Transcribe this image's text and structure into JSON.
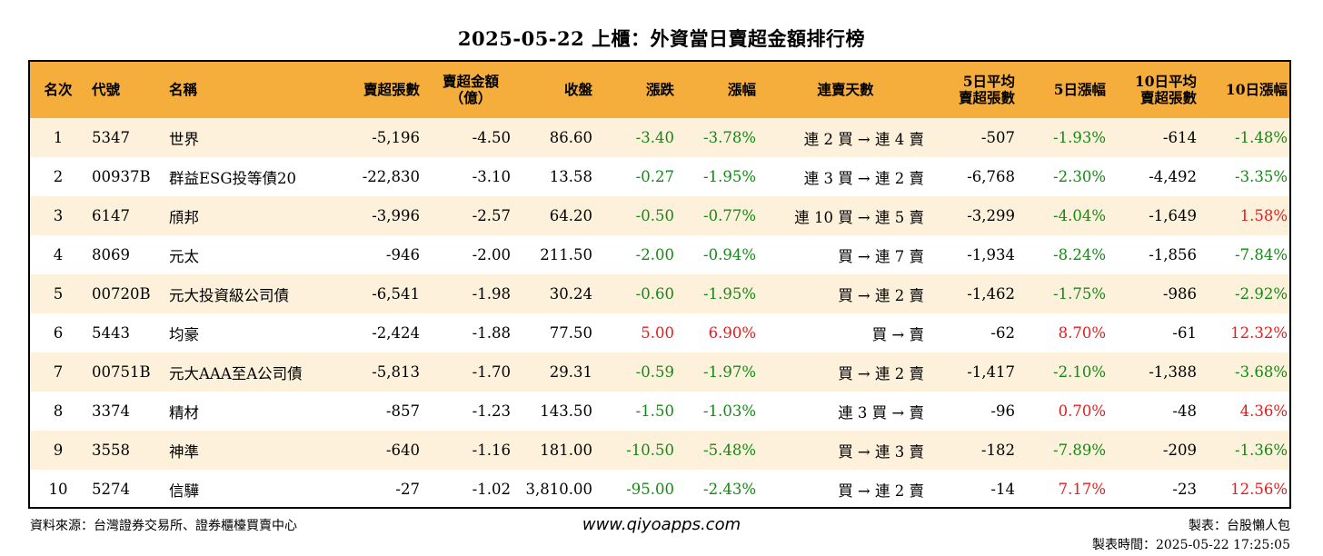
{
  "title": "2025-05-22 上櫃：外資當日賣超金額排行榜",
  "colors": {
    "header_bg": "#f5ae3c",
    "row_alt_bg": "#fdf1dc",
    "negative": "#138a13",
    "positive": "#e51c1c"
  },
  "headers": {
    "rank": "名次",
    "code": "代號",
    "name": "名稱",
    "sell_lots": "賣超張數",
    "sell_amount_1": "賣超金額",
    "sell_amount_2": "（億）",
    "close": "收盤",
    "change": "漲跌",
    "change_pct": "漲幅",
    "streak": "連賣天數",
    "avg5_1": "5日平均",
    "avg5_2": "賣超張數",
    "pct5": "5日漲幅",
    "avg10_1": "10日平均",
    "avg10_2": "賣超張數",
    "pct10": "10日漲幅"
  },
  "rows": [
    {
      "rank": "1",
      "code": "5347",
      "name": "世界",
      "sell_lots": "-5,196",
      "sell_amount": "-4.50",
      "close": "86.60",
      "change": "-3.40",
      "change_pct": "-3.78%",
      "streak": "連 2 買 → 連 4 賣",
      "avg5": "-507",
      "pct5": "-1.93%",
      "avg10": "-614",
      "pct10": "-1.48%"
    },
    {
      "rank": "2",
      "code": "00937B",
      "name": "群益ESG投等債20",
      "sell_lots": "-22,830",
      "sell_amount": "-3.10",
      "close": "13.58",
      "change": "-0.27",
      "change_pct": "-1.95%",
      "streak": "連 3 買 → 連 2 賣",
      "avg5": "-6,768",
      "pct5": "-2.30%",
      "avg10": "-4,492",
      "pct10": "-3.35%"
    },
    {
      "rank": "3",
      "code": "6147",
      "name": "頎邦",
      "sell_lots": "-3,996",
      "sell_amount": "-2.57",
      "close": "64.20",
      "change": "-0.50",
      "change_pct": "-0.77%",
      "streak": "連 10 買 → 連 5 賣",
      "avg5": "-3,299",
      "pct5": "-4.04%",
      "avg10": "-1,649",
      "pct10": "1.58%"
    },
    {
      "rank": "4",
      "code": "8069",
      "name": "元太",
      "sell_lots": "-946",
      "sell_amount": "-2.00",
      "close": "211.50",
      "change": "-2.00",
      "change_pct": "-0.94%",
      "streak": "買 → 連 7 賣",
      "avg5": "-1,934",
      "pct5": "-8.24%",
      "avg10": "-1,856",
      "pct10": "-7.84%"
    },
    {
      "rank": "5",
      "code": "00720B",
      "name": "元大投資級公司債",
      "sell_lots": "-6,541",
      "sell_amount": "-1.98",
      "close": "30.24",
      "change": "-0.60",
      "change_pct": "-1.95%",
      "streak": "買 → 連 2 賣",
      "avg5": "-1,462",
      "pct5": "-1.75%",
      "avg10": "-986",
      "pct10": "-2.92%"
    },
    {
      "rank": "6",
      "code": "5443",
      "name": "均豪",
      "sell_lots": "-2,424",
      "sell_amount": "-1.88",
      "close": "77.50",
      "change": "5.00",
      "change_pct": "6.90%",
      "streak": "買 → 賣",
      "avg5": "-62",
      "pct5": "8.70%",
      "avg10": "-61",
      "pct10": "12.32%"
    },
    {
      "rank": "7",
      "code": "00751B",
      "name": "元大AAA至A公司債",
      "sell_lots": "-5,813",
      "sell_amount": "-1.70",
      "close": "29.31",
      "change": "-0.59",
      "change_pct": "-1.97%",
      "streak": "買 → 連 2 賣",
      "avg5": "-1,417",
      "pct5": "-2.10%",
      "avg10": "-1,388",
      "pct10": "-3.68%"
    },
    {
      "rank": "8",
      "code": "3374",
      "name": "精材",
      "sell_lots": "-857",
      "sell_amount": "-1.23",
      "close": "143.50",
      "change": "-1.50",
      "change_pct": "-1.03%",
      "streak": "連 3 買 → 賣",
      "avg5": "-96",
      "pct5": "0.70%",
      "avg10": "-48",
      "pct10": "4.36%"
    },
    {
      "rank": "9",
      "code": "3558",
      "name": "神準",
      "sell_lots": "-640",
      "sell_amount": "-1.16",
      "close": "181.00",
      "change": "-10.50",
      "change_pct": "-5.48%",
      "streak": "買 → 連 3 賣",
      "avg5": "-182",
      "pct5": "-7.89%",
      "avg10": "-209",
      "pct10": "-1.36%"
    },
    {
      "rank": "10",
      "code": "5274",
      "name": "信驊",
      "sell_lots": "-27",
      "sell_amount": "-1.02",
      "close": "3,810.00",
      "change": "-95.00",
      "change_pct": "-2.43%",
      "streak": "買 → 連 2 賣",
      "avg5": "-14",
      "pct5": "7.17%",
      "avg10": "-23",
      "pct10": "12.56%"
    }
  ],
  "footer": {
    "source": "資料來源：台灣證券交易所、證券櫃檯買賣中心",
    "url": "www.qiyoapps.com",
    "maker": "製表：台股懶人包",
    "time": "製表時間：2025-05-22 17:25:05"
  }
}
